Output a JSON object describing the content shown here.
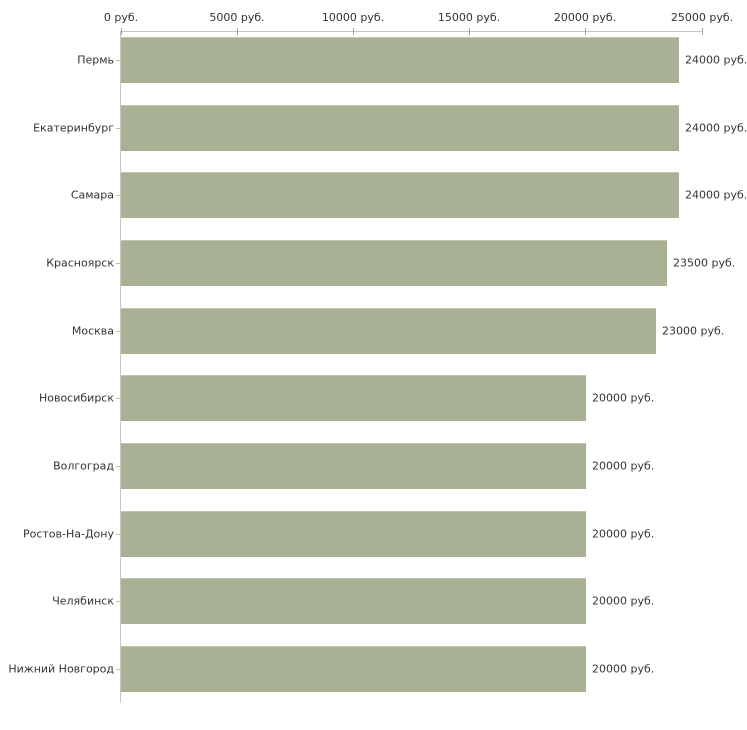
{
  "chart_data": {
    "type": "bar",
    "orientation": "horizontal",
    "title": "",
    "xlabel": "",
    "ylabel": "",
    "categories": [
      "Пермь",
      "Екатеринбург",
      "Самара",
      "Красноярск",
      "Москва",
      "Новосибирск",
      "Волгоград",
      "Ростов-На-Дону",
      "Челябинск",
      "Нижний Новгород"
    ],
    "values": [
      24000,
      24000,
      24000,
      23500,
      23000,
      20000,
      20000,
      20000,
      20000,
      20000
    ],
    "value_labels": [
      "24000 руб.",
      "24000 руб.",
      "24000 руб.",
      "23500 руб.",
      "23000 руб.",
      "20000 руб.",
      "20000 руб.",
      "20000 руб.",
      "20000 руб.",
      "20000 руб."
    ],
    "x_axis": {
      "min": 0,
      "max": 25000,
      "tick_values": [
        0,
        5000,
        10000,
        15000,
        20000,
        25000
      ],
      "tick_labels": [
        "0 руб.",
        "5000 руб.",
        "10000 руб.",
        "15000 руб.",
        "20000 руб.",
        "25000 руб."
      ],
      "position": "top"
    },
    "grid": false,
    "legend": false,
    "unit": "руб.",
    "colors": {
      "bar_fill": "#a9b194",
      "bar_highlight": "#c2c6ab",
      "axis_line": "#c6c6c6",
      "axis_tick": "#b3a273",
      "category_tick": "#ccbb9f",
      "text": "#333333"
    }
  }
}
